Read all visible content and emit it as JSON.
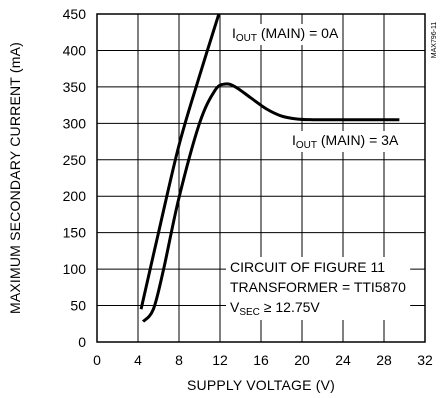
{
  "chart_data": {
    "type": "line",
    "xlabel": "SUPPLY VOLTAGE (V)",
    "ylabel": "MAXIMUM SECONDARY CURRENT (mA)",
    "xlim": [
      0,
      32
    ],
    "ylim": [
      0,
      450
    ],
    "xticks": [
      0,
      4,
      8,
      12,
      16,
      20,
      24,
      28,
      32
    ],
    "yticks": [
      0,
      50,
      100,
      150,
      200,
      250,
      300,
      350,
      400,
      450
    ],
    "grid": true,
    "series": [
      {
        "name": "I_OUT (MAIN) = 0A",
        "label_main": "I",
        "label_sub": "OUT",
        "label_rest": " (MAIN) = 0A",
        "x": [
          4.3,
          6.0,
          8.0,
          10.0,
          12.0
        ],
        "y": [
          45,
          150,
          270,
          365,
          455
        ]
      },
      {
        "name": "I_OUT (MAIN) = 3A",
        "label_main": "I",
        "label_sub": "OUT",
        "label_rest": " (MAIN) = 3A",
        "x": [
          4.5,
          5.5,
          6.5,
          8.0,
          10.0,
          11.5,
          12.5,
          13.5,
          15.0,
          16.5,
          18.0,
          19.5,
          21.0,
          23.0,
          26.0,
          29.5
        ],
        "y": [
          28,
          45,
          100,
          198,
          300,
          345,
          354,
          350,
          335,
          320,
          310,
          306,
          305,
          305,
          305,
          305
        ]
      }
    ],
    "annotations": {
      "circuit": "CIRCUIT OF FIGURE 11",
      "transformer": "TRANSFORMER = TTI5870",
      "vsec_main": "V",
      "vsec_sub": "SEC",
      "vsec_rest": " ≥ 12.75V"
    },
    "side_label": "MAX796-11"
  }
}
